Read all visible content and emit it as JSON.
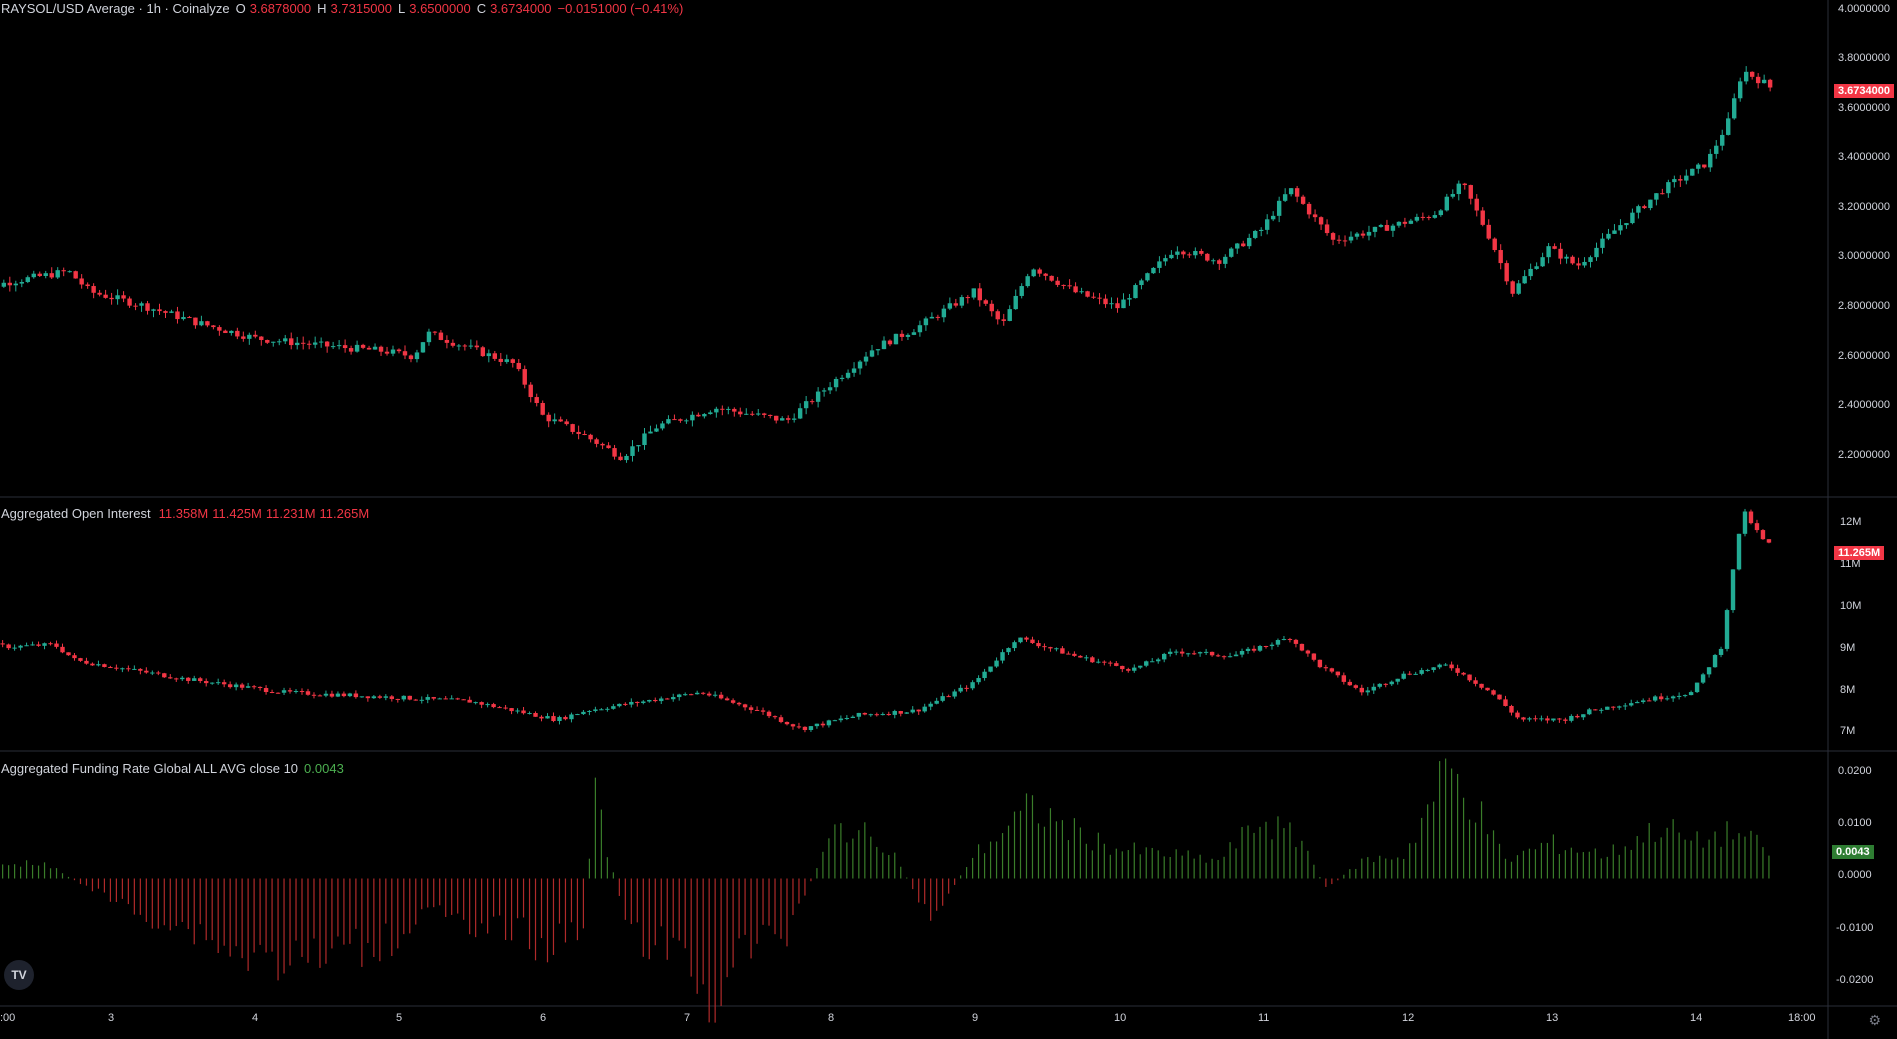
{
  "header": {
    "symbol": "RAYSOL/USD Average · 1h · Coinalyze",
    "o_label": "O",
    "o": "3.6878000",
    "h_label": "H",
    "h": "3.7315000",
    "l_label": "L",
    "l": "3.6500000",
    "c_label": "C",
    "c": "3.6734000",
    "change": "−0.0151000 (−0.41%)"
  },
  "oi_header": {
    "title": "Aggregated Open Interest",
    "values": [
      "11.358M",
      "11.425M",
      "11.231M",
      "11.265M"
    ]
  },
  "funding_header": {
    "title": "Aggregated Funding Rate Global ALL AVG close 10",
    "value": "0.0043"
  },
  "price_axis": [
    "4.0000000",
    "3.8000000",
    "3.6000000",
    "3.4000000",
    "3.2000000",
    "3.0000000",
    "2.8000000",
    "2.6000000",
    "2.4000000",
    "2.2000000"
  ],
  "price_tag": "3.6734000",
  "oi_axis": [
    "12M",
    "11M",
    "10M",
    "9M",
    "8M",
    "7M"
  ],
  "oi_tag": "11.265M",
  "funding_axis": [
    "0.0200",
    "0.0100",
    "0.0000",
    "-0.0100",
    "-0.0200"
  ],
  "funding_tag": "0.0043",
  "time_axis": [
    ":00",
    "3",
    "4",
    "5",
    "6",
    "7",
    "8",
    "9",
    "10",
    "11",
    "12",
    "13",
    "14",
    "18:00"
  ],
  "logo_text": "TV",
  "gear_icon": "gear-icon",
  "colors": {
    "up": "#22ab94",
    "down": "#f23645",
    "fund_up": "#3a7d2a",
    "fund_down": "#b02a2a",
    "bg": "#000000",
    "divider": "#2a2e39"
  },
  "chart_data": [
    {
      "type": "candlestick",
      "title": "RAYSOL/USD Average · 1h · Coinalyze",
      "ylim": [
        2.1,
        4.0
      ],
      "x_ticks": [
        "3",
        "4",
        "5",
        "6",
        "7",
        "8",
        "9",
        "10",
        "11",
        "12",
        "13",
        "14",
        "18:00"
      ],
      "close_path_points": [
        [
          2.0,
          2.88
        ],
        [
          2.3,
          2.92
        ],
        [
          2.7,
          2.96
        ],
        [
          2.85,
          2.88
        ],
        [
          3.2,
          2.83
        ],
        [
          3.6,
          2.76
        ],
        [
          4.0,
          2.7
        ],
        [
          4.5,
          2.67
        ],
        [
          4.9,
          2.65
        ],
        [
          5.1,
          2.63
        ],
        [
          5.2,
          2.72
        ],
        [
          5.5,
          2.66
        ],
        [
          5.8,
          2.6
        ],
        [
          6.0,
          2.4
        ],
        [
          6.3,
          2.32
        ],
        [
          6.55,
          2.24
        ],
        [
          6.8,
          2.36
        ],
        [
          7.2,
          2.43
        ],
        [
          7.5,
          2.4
        ],
        [
          7.7,
          2.38
        ],
        [
          8.0,
          2.52
        ],
        [
          8.3,
          2.66
        ],
        [
          8.6,
          2.74
        ],
        [
          9.0,
          2.88
        ],
        [
          9.2,
          2.75
        ],
        [
          9.4,
          2.98
        ],
        [
          9.7,
          2.88
        ],
        [
          10.0,
          2.82
        ],
        [
          10.4,
          3.05
        ],
        [
          10.7,
          3.0
        ],
        [
          11.0,
          3.12
        ],
        [
          11.2,
          3.28
        ],
        [
          11.5,
          3.08
        ],
        [
          11.8,
          3.12
        ],
        [
          12.2,
          3.18
        ],
        [
          12.4,
          3.3
        ],
        [
          12.6,
          3.08
        ],
        [
          12.75,
          2.88
        ],
        [
          13.0,
          3.05
        ],
        [
          13.2,
          2.98
        ],
        [
          13.5,
          3.14
        ],
        [
          13.8,
          3.28
        ],
        [
          14.1,
          3.38
        ],
        [
          14.25,
          3.54
        ],
        [
          14.35,
          3.74
        ],
        [
          14.5,
          3.69
        ],
        [
          14.55,
          3.67
        ]
      ]
    },
    {
      "type": "candlestick",
      "title": "Aggregated Open Interest",
      "ylim": [
        6.8,
        12.2
      ],
      "units": "M",
      "close_path_points": [
        [
          1.95,
          9.1
        ],
        [
          2.3,
          9.0
        ],
        [
          2.6,
          9.05
        ],
        [
          2.75,
          8.7
        ],
        [
          3.5,
          8.3
        ],
        [
          4.2,
          8.0
        ],
        [
          4.9,
          7.9
        ],
        [
          5.5,
          7.8
        ],
        [
          6.1,
          7.4
        ],
        [
          6.3,
          7.6
        ],
        [
          6.7,
          7.8
        ],
        [
          7.1,
          8.0
        ],
        [
          7.5,
          7.6
        ],
        [
          7.8,
          7.2
        ],
        [
          8.2,
          7.5
        ],
        [
          8.6,
          7.6
        ],
        [
          9.0,
          8.2
        ],
        [
          9.3,
          9.2
        ],
        [
          9.7,
          8.8
        ],
        [
          10.1,
          8.5
        ],
        [
          10.4,
          8.9
        ],
        [
          10.8,
          8.8
        ],
        [
          11.2,
          9.2
        ],
        [
          11.4,
          8.6
        ],
        [
          11.7,
          8.0
        ],
        [
          12.0,
          8.4
        ],
        [
          12.3,
          8.6
        ],
        [
          12.6,
          8.0
        ],
        [
          12.8,
          7.4
        ],
        [
          13.1,
          7.4
        ],
        [
          13.3,
          7.6
        ],
        [
          13.6,
          7.8
        ],
        [
          14.0,
          8.0
        ],
        [
          14.2,
          9.0
        ],
        [
          14.3,
          11.0
        ],
        [
          14.35,
          12.0
        ],
        [
          14.5,
          11.3
        ],
        [
          14.55,
          11.265
        ]
      ]
    },
    {
      "type": "bar",
      "title": "Aggregated Funding Rate Global ALL AVG close 10",
      "ylim": [
        -0.0215,
        0.0215
      ],
      "value_points": [
        [
          1.95,
          -0.002
        ],
        [
          2.2,
          0.002
        ],
        [
          2.5,
          0.003
        ],
        [
          2.8,
          -0.001
        ],
        [
          3.2,
          -0.006
        ],
        [
          3.6,
          -0.009
        ],
        [
          3.9,
          -0.013
        ],
        [
          4.3,
          -0.014
        ],
        [
          4.7,
          -0.012
        ],
        [
          5.0,
          -0.01
        ],
        [
          5.2,
          -0.004
        ],
        [
          5.5,
          -0.01
        ],
        [
          5.8,
          -0.008
        ],
        [
          6.0,
          -0.012
        ],
        [
          6.3,
          -0.008
        ],
        [
          6.35,
          0.015
        ],
        [
          6.6,
          -0.01
        ],
        [
          6.9,
          -0.012
        ],
        [
          7.15,
          -0.021
        ],
        [
          7.4,
          -0.012
        ],
        [
          7.7,
          -0.009
        ],
        [
          8.05,
          0.009
        ],
        [
          8.4,
          0.006
        ],
        [
          8.7,
          -0.007
        ],
        [
          9.0,
          0.004
        ],
        [
          9.4,
          0.012
        ],
        [
          9.7,
          0.008
        ],
        [
          10.0,
          0.005
        ],
        [
          10.4,
          0.004
        ],
        [
          10.7,
          0.003
        ],
        [
          11.0,
          0.01
        ],
        [
          11.3,
          0.006
        ],
        [
          11.45,
          -0.002
        ],
        [
          11.7,
          0.003
        ],
        [
          12.0,
          0.004
        ],
        [
          12.3,
          0.019
        ],
        [
          12.5,
          0.012
        ],
        [
          12.7,
          0.003
        ],
        [
          13.0,
          0.006
        ],
        [
          13.4,
          0.004
        ],
        [
          13.8,
          0.009
        ],
        [
          14.0,
          0.006
        ],
        [
          14.3,
          0.008
        ],
        [
          14.55,
          0.0043
        ]
      ]
    }
  ]
}
